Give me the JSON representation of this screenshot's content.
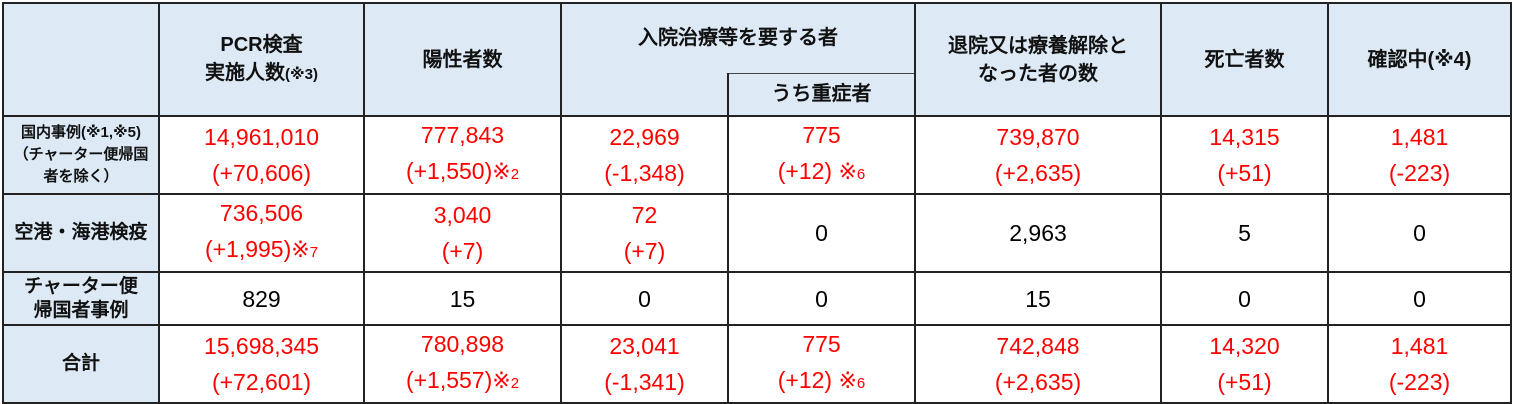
{
  "headers": {
    "pcr": "PCR検査",
    "pcr2": "実施人数",
    "pcr_note": "(※3)",
    "positive": "陽性者数",
    "hospital": "入院治療等を要する者",
    "severe": "うち重症者",
    "discharged": "退院又は療養解除と",
    "discharged2": "なった者の数",
    "deaths": "死亡者数",
    "checking": "確認中(※4)"
  },
  "rows": [
    {
      "label": [
        "国内事例(※1,※5)",
        "（チャーター便帰国",
        "者を除く）"
      ],
      "cells": [
        {
          "v": "14,961,010",
          "d": "(+70,606)",
          "red": true
        },
        {
          "v": "777,843",
          "d": "(+1,550)",
          "note": "※",
          "note_n": "2",
          "red": true
        },
        {
          "v": "22,969",
          "d": "(-1,348)",
          "red": true
        },
        {
          "v": "775",
          "d": "(+12) ",
          "note": "※",
          "note_n": "6",
          "red": true
        },
        {
          "v": "739,870",
          "d": "(+2,635)",
          "red": true
        },
        {
          "v": "14,315",
          "d": "(+51)",
          "red": true
        },
        {
          "v": "1,481",
          "d": "(-223)",
          "red": true
        }
      ]
    },
    {
      "label": [
        "空港・海港検疫"
      ],
      "cells": [
        {
          "v": "736,506",
          "d": "(+1,995)",
          "note": "※",
          "note_n": "7",
          "red": true
        },
        {
          "v": "3,040",
          "d": "(+7)",
          "red": true
        },
        {
          "v": "72",
          "d": "(+7)",
          "red": true
        },
        {
          "v": "0"
        },
        {
          "v": "2,963"
        },
        {
          "v": "5"
        },
        {
          "v": "0"
        }
      ]
    },
    {
      "label": [
        "チャーター便",
        "帰国者事例"
      ],
      "cells": [
        {
          "v": "829"
        },
        {
          "v": "15"
        },
        {
          "v": "0"
        },
        {
          "v": "0"
        },
        {
          "v": "15"
        },
        {
          "v": "0"
        },
        {
          "v": "0"
        }
      ]
    },
    {
      "label": [
        "合計"
      ],
      "cells": [
        {
          "v": "15,698,345",
          "d": "(+72,601)",
          "red": true
        },
        {
          "v": "780,898",
          "d": "(+1,557)",
          "note": "※",
          "note_n": "2",
          "red": true
        },
        {
          "v": "23,041",
          "d": "(-1,341)",
          "red": true
        },
        {
          "v": "775",
          "d": "(+12) ",
          "note": "※",
          "note_n": "6",
          "red": true
        },
        {
          "v": "742,848",
          "d": "(+2,635)",
          "red": true
        },
        {
          "v": "14,320",
          "d": "(+51)",
          "red": true
        },
        {
          "v": "1,481",
          "d": "(-223)",
          "red": true
        }
      ]
    }
  ],
  "colors": {
    "value_red": "#ff0000",
    "header_bg": "#ddeaf6"
  }
}
